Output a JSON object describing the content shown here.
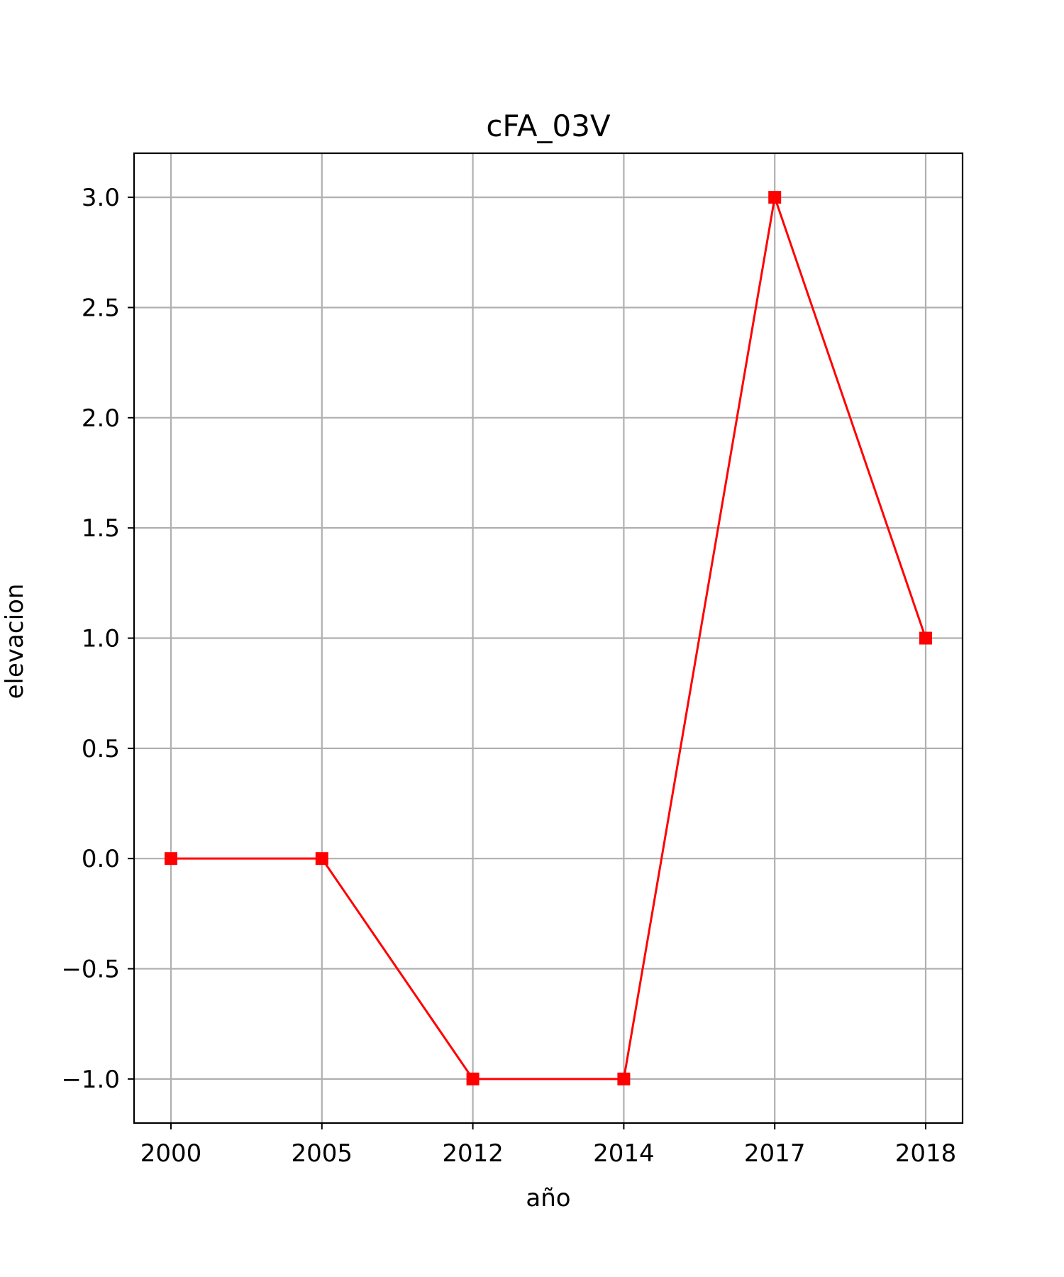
{
  "chart_data": {
    "type": "line",
    "title": "cFA_03V",
    "xlabel": "año",
    "ylabel": "elevacion",
    "categories": [
      "2000",
      "2005",
      "2012",
      "2014",
      "2017",
      "2018"
    ],
    "series": [
      {
        "values": [
          0,
          0,
          -1,
          -1,
          3,
          1
        ],
        "color": "#ff0000",
        "marker": "square"
      }
    ],
    "ylim": [
      -1.2,
      3.2
    ],
    "yticks": [
      {
        "value": -1.0,
        "label": "−1.0"
      },
      {
        "value": -0.5,
        "label": "−0.5"
      },
      {
        "value": 0.0,
        "label": "0.0"
      },
      {
        "value": 0.5,
        "label": "0.5"
      },
      {
        "value": 1.0,
        "label": "1.0"
      },
      {
        "value": 1.5,
        "label": "1.5"
      },
      {
        "value": 2.0,
        "label": "2.0"
      },
      {
        "value": 2.5,
        "label": "2.5"
      },
      {
        "value": 3.0,
        "label": "3.0"
      }
    ],
    "grid": true
  }
}
